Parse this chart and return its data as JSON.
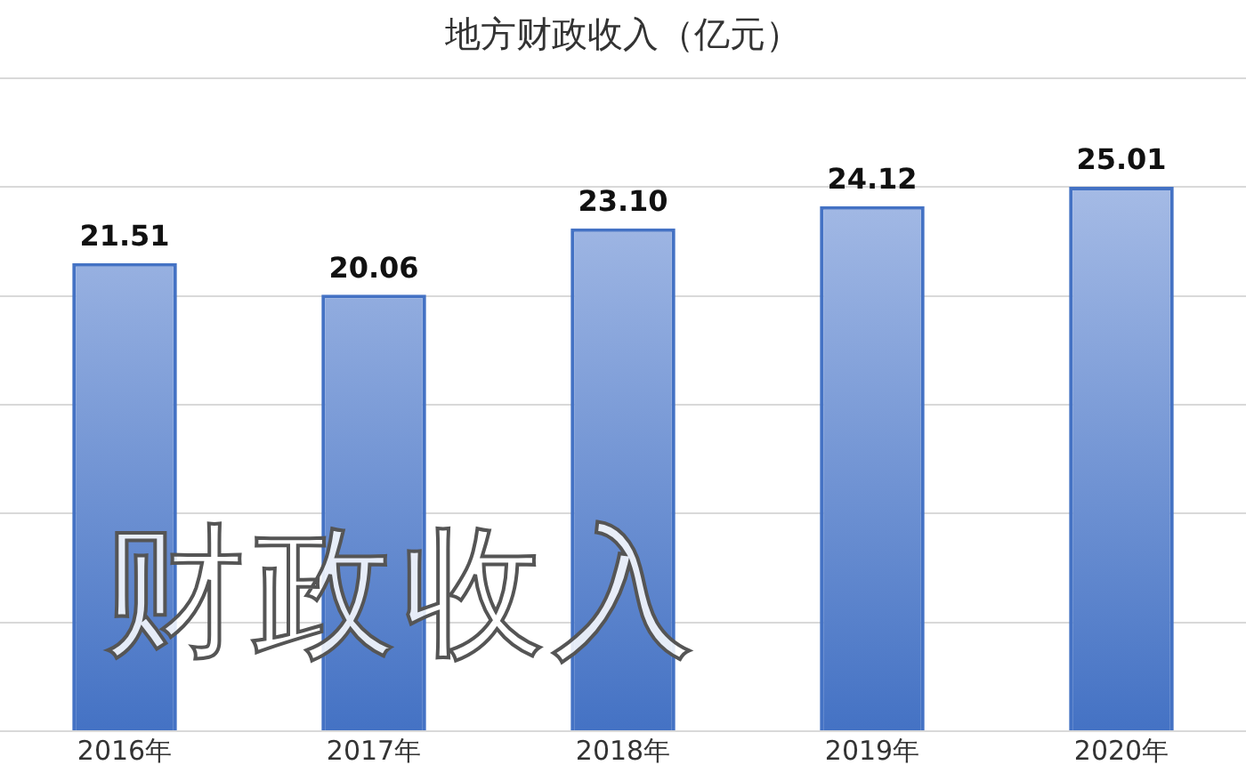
{
  "chart_data": {
    "type": "bar",
    "title": "地方财政收入（亿元）",
    "categories": [
      "2016年",
      "2017年",
      "2018年",
      "2019年",
      "2020年"
    ],
    "values": [
      21.51,
      20.06,
      23.1,
      24.12,
      25.01
    ],
    "value_labels": [
      "21.51",
      "20.06",
      "23.10",
      "24.12",
      "25.01"
    ],
    "color": "#4472c4",
    "tick_labels": "x",
    "grid": "y",
    "legend": false,
    "annotations": [
      "财政收入"
    ]
  }
}
